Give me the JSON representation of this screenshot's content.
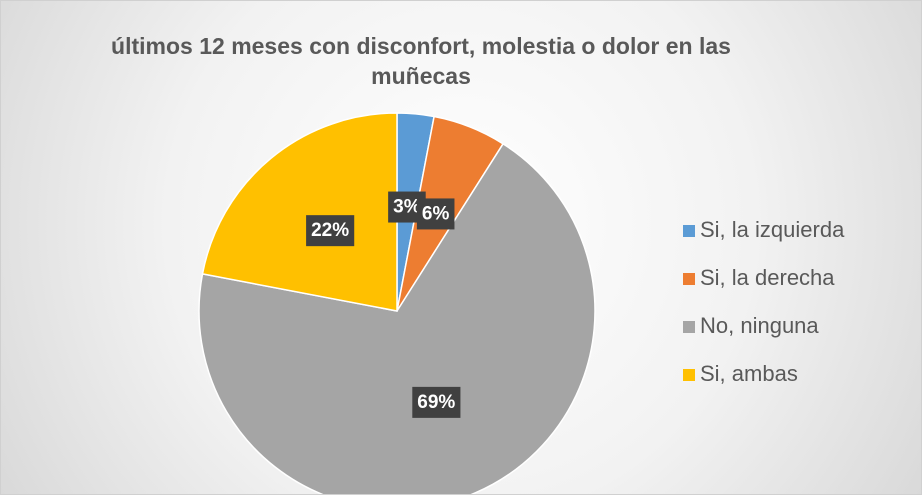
{
  "chart_data": {
    "type": "pie",
    "title": "últimos 12 meses con disconfort, molestia o dolor en las muñecas",
    "categories": [
      "Si, la izquierda",
      "Si, la derecha",
      "No, ninguna",
      "Si, ambas"
    ],
    "values": [
      3,
      6,
      69,
      22
    ],
    "value_labels": [
      "3%",
      "6%",
      "69%",
      "22%"
    ],
    "colors": [
      "#5b9bd5",
      "#ed7d31",
      "#a5a5a5",
      "#ffc000"
    ],
    "legend": "right"
  }
}
